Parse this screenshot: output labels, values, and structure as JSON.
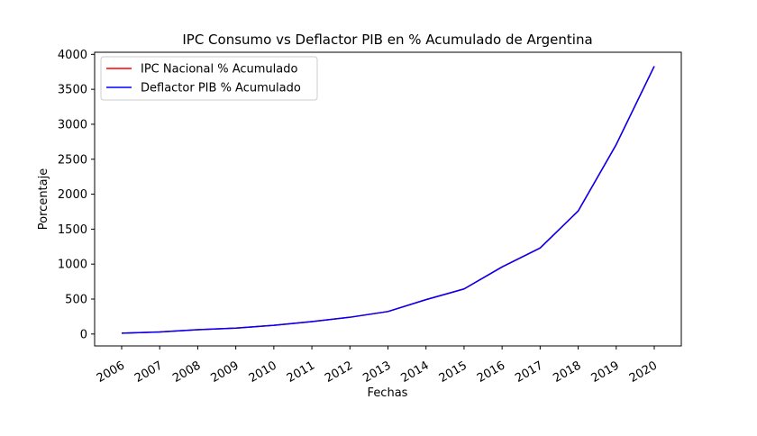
{
  "chart_data": {
    "type": "line",
    "title": "IPC Consumo vs Deflactor PIB en % Acumulado de Argentina",
    "xlabel": "Fechas",
    "ylabel": "Porcentaje",
    "x": [
      "2006",
      "2007",
      "2008",
      "2009",
      "2010",
      "2011",
      "2012",
      "2013",
      "2014",
      "2015",
      "2016",
      "2017",
      "2018",
      "2019",
      "2020"
    ],
    "ylim": [
      -170,
      4030
    ],
    "yticks": [
      0,
      500,
      1000,
      1500,
      2000,
      2500,
      3000,
      3500,
      4000
    ],
    "grid": false,
    "legend": "top-left",
    "series": [
      {
        "name": "IPC Nacional % Acumulado",
        "color": "#ff0000",
        "values": [
          12,
          30,
          62,
          85,
          125,
          178,
          240,
          322,
          492,
          645,
          960,
          1230,
          1760,
          2710,
          3830
        ]
      },
      {
        "name": "Deflactor PIB % Acumulado",
        "color": "#0000ff",
        "values": [
          12,
          30,
          62,
          85,
          125,
          178,
          240,
          322,
          492,
          645,
          960,
          1230,
          1760,
          2710,
          3830
        ]
      }
    ]
  }
}
